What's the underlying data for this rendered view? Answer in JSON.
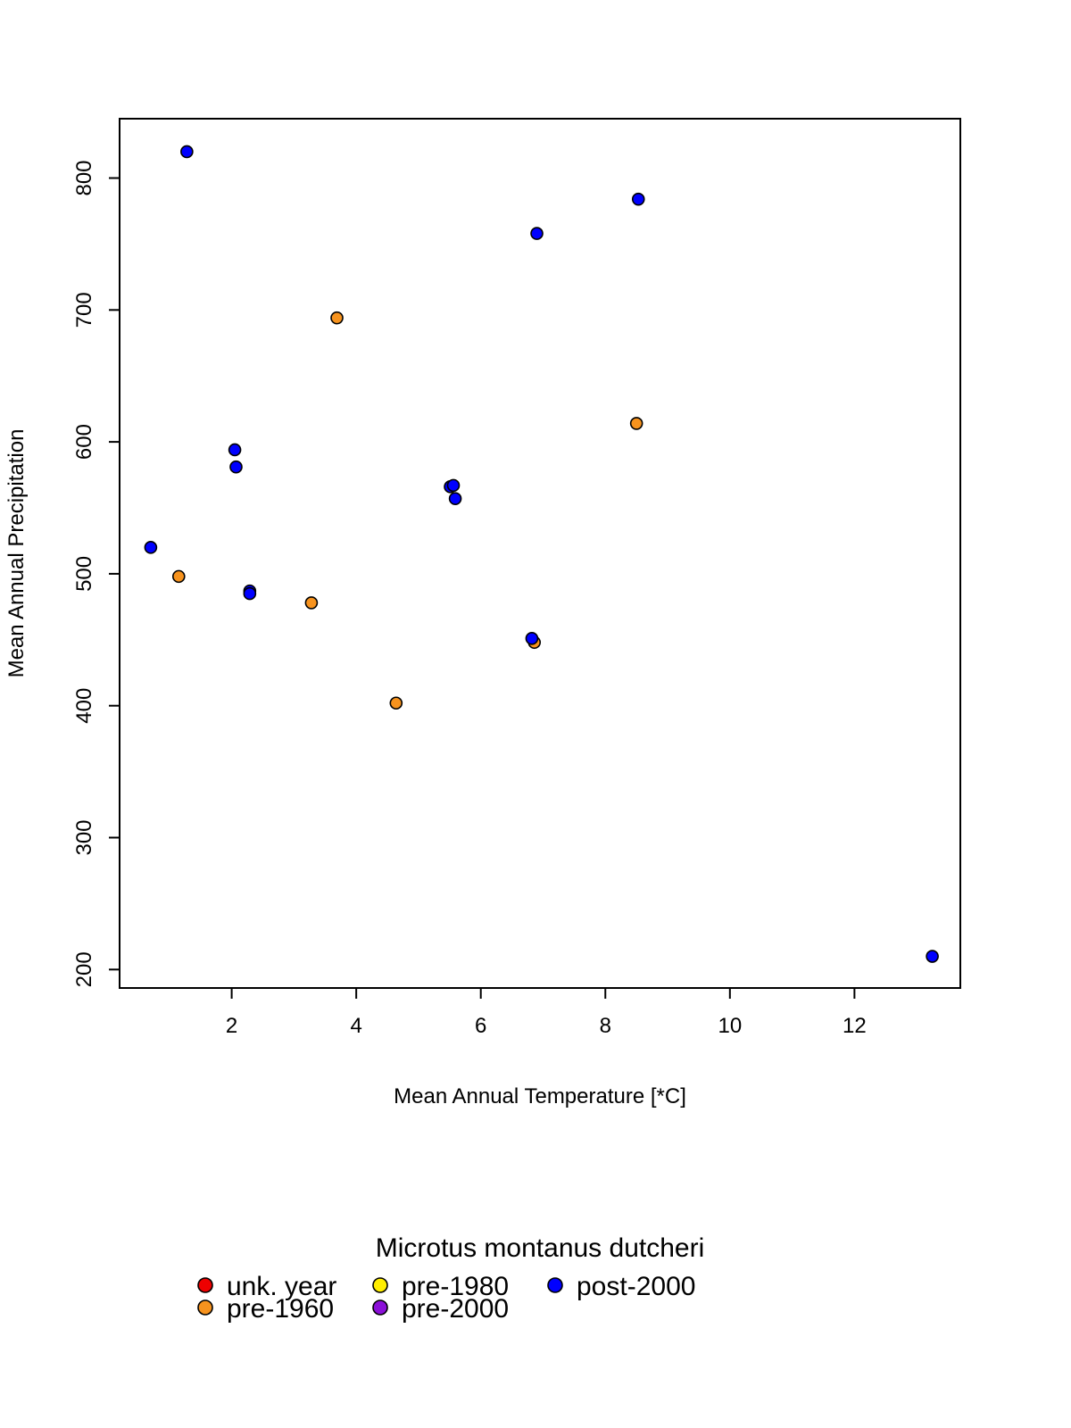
{
  "chart_data": {
    "type": "scatter",
    "title": "",
    "xlabel": "Mean Annual Temperature [*C]",
    "ylabel": "Mean Annual Precipitation",
    "xlim": [
      0.2,
      13.7
    ],
    "ylim": [
      186,
      845
    ],
    "x_ticks": [
      2,
      4,
      6,
      8,
      10,
      12
    ],
    "y_ticks": [
      200,
      300,
      400,
      500,
      600,
      700,
      800
    ],
    "grid": false,
    "legend": {
      "title": "Microtus montanus dutcheri",
      "placement": "bottom",
      "entries": [
        {
          "label": "unk. year",
          "color": "#ee0000"
        },
        {
          "label": "pre-1960",
          "color": "#f7931e"
        },
        {
          "label": "pre-1980",
          "color": "#ffee00"
        },
        {
          "label": "pre-2000",
          "color": "#8b10d8"
        },
        {
          "label": "post-2000",
          "color": "#0000ff"
        }
      ]
    },
    "series": [
      {
        "name": "pre-1960",
        "color": "#f7931e",
        "points": [
          {
            "x": 1.15,
            "y": 498
          },
          {
            "x": 3.28,
            "y": 478
          },
          {
            "x": 3.69,
            "y": 694
          },
          {
            "x": 4.64,
            "y": 402
          },
          {
            "x": 6.86,
            "y": 448
          },
          {
            "x": 8.5,
            "y": 614
          }
        ]
      },
      {
        "name": "post-2000",
        "color": "#0000ff",
        "points": [
          {
            "x": 0.7,
            "y": 520
          },
          {
            "x": 1.28,
            "y": 820
          },
          {
            "x": 2.05,
            "y": 594
          },
          {
            "x": 2.07,
            "y": 581
          },
          {
            "x": 2.29,
            "y": 487
          },
          {
            "x": 2.29,
            "y": 485
          },
          {
            "x": 5.51,
            "y": 566
          },
          {
            "x": 5.56,
            "y": 567
          },
          {
            "x": 5.59,
            "y": 557
          },
          {
            "x": 6.82,
            "y": 451
          },
          {
            "x": 6.9,
            "y": 758
          },
          {
            "x": 8.53,
            "y": 784
          },
          {
            "x": 13.25,
            "y": 210
          }
        ]
      }
    ]
  }
}
